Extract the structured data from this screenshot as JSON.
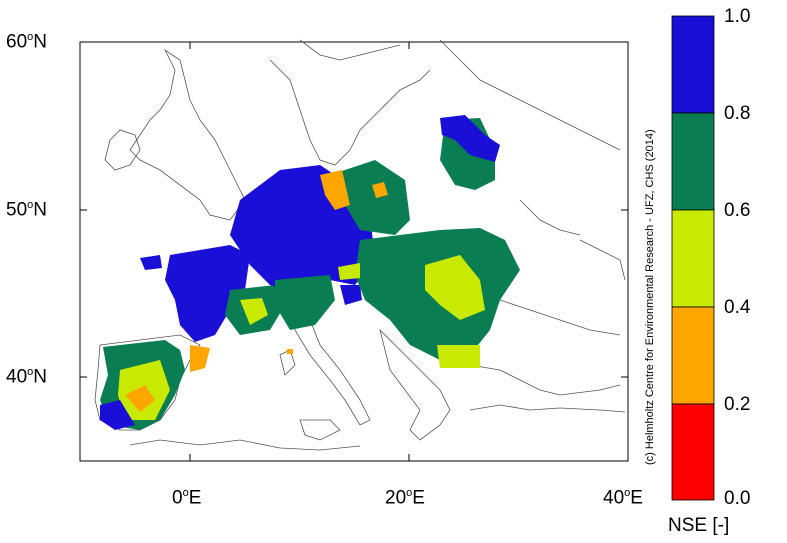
{
  "map": {
    "lat_labels": [
      "60",
      "50",
      "40"
    ],
    "lon_labels": [
      "0",
      "20",
      "40"
    ],
    "lat_suffix": "N",
    "lon_suffix": "E",
    "credit": "(c) Helmholtz Centre for Environmental Research - UFZ, CHS (2014)"
  },
  "legend": {
    "title": "NSE [-]",
    "tick_labels": [
      "1.0",
      "0.8",
      "0.6",
      "0.4",
      "0.2",
      "0.0"
    ],
    "bins": [
      {
        "range": "0.8-1.0",
        "color": "#1a0fd6"
      },
      {
        "range": "0.6-0.8",
        "color": "#0a7d52"
      },
      {
        "range": "0.4-0.6",
        "color": "#c8ea00"
      },
      {
        "range": "0.2-0.4",
        "color": "#ffa500"
      },
      {
        "range": "0.0-0.2",
        "color": "#ff0000"
      }
    ]
  },
  "colors": {
    "blue": "#1a0fd6",
    "green": "#0a7d52",
    "lime": "#c8ea00",
    "orange": "#ffa500",
    "red": "#ff0000"
  }
}
